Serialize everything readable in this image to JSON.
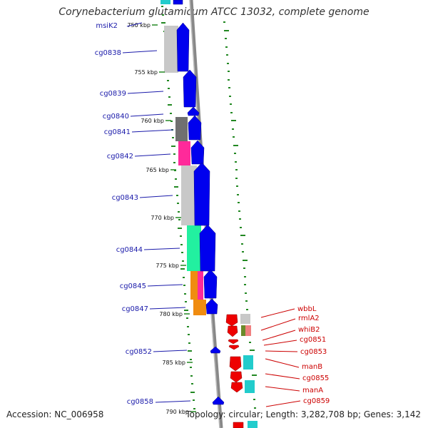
{
  "title": "Corynebacterium glutamicum ATCC 13032, complete genome",
  "accession": "Accession: NC_006958",
  "footer_info": "Topology: circular; Length: 3,282,708 bp; Genes: 3,142",
  "scale": {
    "unit": "kbp",
    "ticks": [
      {
        "label": "750 kbp"
      },
      {
        "label": "755 kbp"
      },
      {
        "label": "760 kbp"
      },
      {
        "label": "765 kbp"
      },
      {
        "label": "770 kbp"
      },
      {
        "label": "775 kbp"
      },
      {
        "label": "780 kbp"
      },
      {
        "label": "785 kbp"
      },
      {
        "label": "790 kbp"
      }
    ]
  },
  "left_genes": [
    {
      "name": "msiK2"
    },
    {
      "name": "cg0838"
    },
    {
      "name": "cg0839"
    },
    {
      "name": "cg0840"
    },
    {
      "name": "cg0841"
    },
    {
      "name": "cg0842"
    },
    {
      "name": "cg0843"
    },
    {
      "name": "cg0844"
    },
    {
      "name": "cg0845"
    },
    {
      "name": "cg0847"
    },
    {
      "name": "cg0852"
    },
    {
      "name": "cg0858"
    }
  ],
  "right_genes": [
    {
      "name": "wbbL"
    },
    {
      "name": "rmlA2"
    },
    {
      "name": "whiB2"
    },
    {
      "name": "cg0851"
    },
    {
      "name": "cg0853"
    },
    {
      "name": "manB"
    },
    {
      "name": "cg0855"
    },
    {
      "name": "manA"
    },
    {
      "name": "cg0859"
    }
  ],
  "colors": {
    "forward_gene": "#0000ee",
    "reverse_gene": "#ee0000",
    "backbone": "#888888",
    "gc_dots": "#228822",
    "label_left": "#1a1aaa",
    "label_right": "#cc0000",
    "cog_gray": "#c8c8c8",
    "cog_dark_gray": "#707070",
    "cog_pink": "#ff2a9a",
    "cog_mint": "#22f0a0",
    "cog_orange": "#f08c10",
    "cog_cyan": "#22cccc",
    "cog_olive": "#6a8a2a",
    "cog_salmon": "#f08080"
  }
}
